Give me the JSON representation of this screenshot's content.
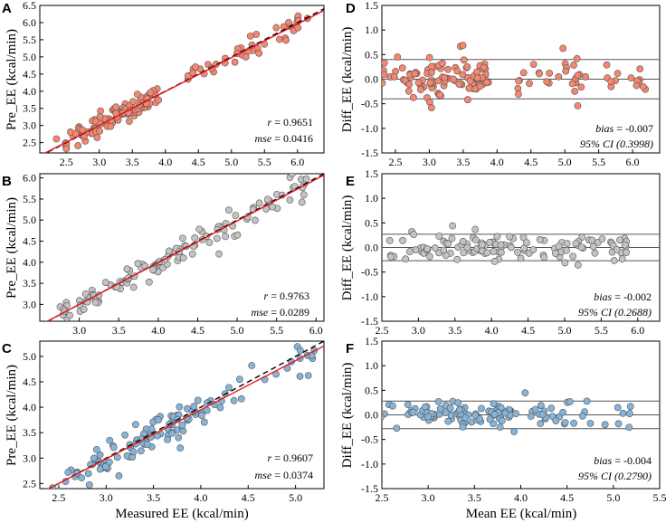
{
  "figure": {
    "x_label_left": "Measured EE (kcal/min)",
    "x_label_right": "Mean EE (kcal/min)",
    "y_label_left": "Pre_EE (kcal/min)",
    "y_label_right": "Diff_EE (kcal/min)"
  },
  "colors": {
    "A": "#f5866f",
    "B": "#c3c3c3",
    "C": "#86b4d9",
    "identity_line": "#000000",
    "regression_line": "#e8141d",
    "limit_line": "#555555"
  },
  "chart_data": [
    {
      "panel": "A",
      "type": "scatter",
      "color": "#f5866f",
      "xlabel": "",
      "ylabel": "Pre_EE (kcal/min)",
      "xlim": [
        2.1,
        6.4
      ],
      "ylim": [
        2.2,
        6.5
      ],
      "xticks": [
        "2.5",
        "3.0",
        "3.5",
        "4.0",
        "4.5",
        "5.0",
        "5.5",
        "6.0"
      ],
      "yticks": [
        "2.5",
        "3.0",
        "3.5",
        "4.0",
        "4.5",
        "5.0",
        "5.5",
        "6.0",
        "6.5"
      ],
      "stats": {
        "r_label": "r",
        "r_value": " = 0.9651",
        "mse_label": "mse",
        "mse_value": " = 0.0416"
      },
      "regression": {
        "slope": 0.985,
        "intercept": 0.05
      }
    },
    {
      "panel": "B",
      "type": "scatter",
      "color": "#c3c3c3",
      "xlabel": "",
      "ylabel": "Pre_EE (kcal/min)",
      "xlim": [
        2.5,
        6.1
      ],
      "ylim": [
        2.6,
        6.1
      ],
      "xticks": [
        "3.0",
        "3.5",
        "4.0",
        "4.5",
        "5.0",
        "5.5",
        "6.0"
      ],
      "yticks": [
        "3.0",
        "3.5",
        "4.0",
        "4.5",
        "5.0",
        "5.5",
        "6.0"
      ],
      "stats": {
        "r_label": "r",
        "r_value": " = 0.9763",
        "mse_label": "mse",
        "mse_value": " = 0.0289"
      },
      "regression": {
        "slope": 0.99,
        "intercept": 0.03
      }
    },
    {
      "panel": "C",
      "type": "scatter",
      "color": "#86b4d9",
      "xlabel": "Measured EE (kcal/min)",
      "ylabel": "Pre_EE (kcal/min)",
      "xlim": [
        2.3,
        5.3
      ],
      "ylim": [
        2.4,
        5.3
      ],
      "xticks": [
        "2.5",
        "3.0",
        "3.5",
        "4.0",
        "4.5",
        "5.0"
      ],
      "yticks": [
        "2.5",
        "3.0",
        "3.5",
        "4.0",
        "4.5",
        "5.0"
      ],
      "stats": {
        "r_label": "r",
        "r_value": " = 0.9607",
        "mse_label": "mse",
        "mse_value": " = 0.0374"
      },
      "regression": {
        "slope": 0.965,
        "intercept": 0.09
      }
    },
    {
      "panel": "D",
      "type": "bland-altman",
      "color": "#f5866f",
      "xlabel": "",
      "ylabel": "Diff_EE (kcal/min)",
      "xlim": [
        2.3,
        6.4
      ],
      "ylim": [
        -1.5,
        1.5
      ],
      "xticks": [
        "2.5",
        "3.0",
        "3.5",
        "4.0",
        "4.5",
        "5.0",
        "5.5",
        "6.0"
      ],
      "yticks": [
        "1.5",
        "1.0",
        "0.5",
        "0.0",
        "-0.5",
        "-1.0",
        "-1.5"
      ],
      "limits": [
        0.4,
        0.0,
        -0.4
      ],
      "stats": {
        "bias_label": "bias",
        "bias_value": " = -0.007",
        "ci_text": "95% CI (0.3998)"
      }
    },
    {
      "panel": "E",
      "type": "bland-altman",
      "color": "#c3c3c3",
      "xlabel": "",
      "ylabel": "Diff_EE (kcal/min)",
      "xlim": [
        2.5,
        6.3
      ],
      "ylim": [
        -1.5,
        1.5
      ],
      "xticks": [
        "2.5",
        "3.0",
        "3.5",
        "4.0",
        "4.5",
        "5.0",
        "5.5",
        "6.0"
      ],
      "yticks": [
        "1.5",
        "1.0",
        "0.5",
        "0.0",
        "-0.5",
        "-1.0",
        "-1.5"
      ],
      "limits": [
        0.27,
        0.0,
        -0.27
      ],
      "stats": {
        "bias_label": "bias",
        "bias_value": " = -0.002",
        "ci_text": "95% CI (0.2688)"
      }
    },
    {
      "panel": "F",
      "type": "bland-altman",
      "color": "#86b4d9",
      "xlabel": "Mean EE (kcal/min)",
      "ylabel": "Diff_EE (kcal/min)",
      "xlim": [
        2.5,
        5.5
      ],
      "ylim": [
        -1.5,
        1.5
      ],
      "xticks": [
        "2.5",
        "3.0",
        "3.5",
        "4.0",
        "4.5",
        "5.0",
        "5.5"
      ],
      "yticks": [
        "1.5",
        "1.0",
        "0.5",
        "0.0",
        "-0.5",
        "-1.0",
        "-1.5"
      ],
      "limits": [
        0.28,
        0.0,
        -0.28
      ],
      "stats": {
        "bias_label": "bias",
        "bias_value": " = -0.004",
        "ci_text": "95% CI (0.2790)"
      }
    }
  ]
}
